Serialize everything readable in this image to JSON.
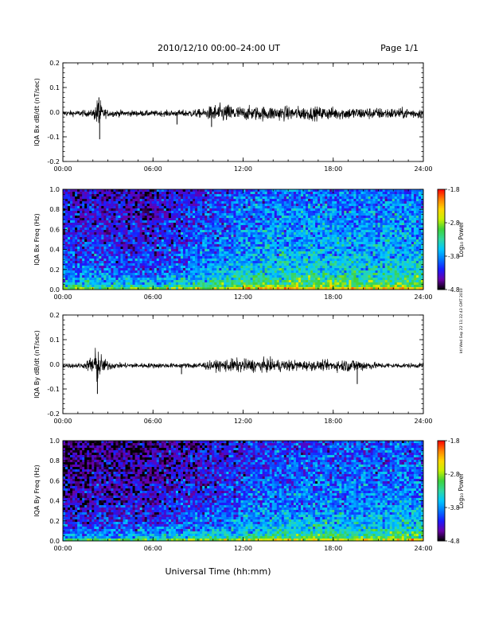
{
  "header": {
    "date_range": "2010/12/10  00:00–24:00 UT",
    "page": "Page 1/1"
  },
  "footer": {
    "xlabel": "Universal Time (hh:mm)"
  },
  "side_stamp": "ktl Wed Sep 22 11:32:43 GMT 2010",
  "colors": {
    "trace": "#000000",
    "spectrogram_scale": [
      "#000000",
      "#6a00a8",
      "#1a1aff",
      "#0078ff",
      "#00c8ff",
      "#30d8a0",
      "#3cd23c",
      "#c8f000",
      "#ffd700",
      "#ff8000",
      "#ff0000"
    ]
  },
  "chart_data": [
    {
      "type": "line",
      "title": "",
      "ylabel": "IQA Bx dB/dt (nT/sec)",
      "xlabel": "",
      "x_ticks": [
        "00:00",
        "06:00",
        "12:00",
        "18:00",
        "24:00"
      ],
      "y_ticks": [
        "0.2",
        "0.1",
        "0.0",
        "-0.1",
        "-0.2"
      ],
      "xlim": [
        0,
        24
      ],
      "ylim": [
        -0.2,
        0.2
      ],
      "units": "hours UT",
      "envelope": [
        {
          "x": 0,
          "amp": 0.012
        },
        {
          "x": 2.0,
          "amp": 0.015
        },
        {
          "x": 2.2,
          "amp": 0.045
        },
        {
          "x": 2.4,
          "amp": 0.085
        },
        {
          "x": 2.6,
          "amp": 0.03
        },
        {
          "x": 3.0,
          "amp": 0.015
        },
        {
          "x": 6.0,
          "amp": 0.012
        },
        {
          "x": 7.5,
          "amp": 0.014
        },
        {
          "x": 9.5,
          "amp": 0.02
        },
        {
          "x": 10.0,
          "amp": 0.04
        },
        {
          "x": 11.0,
          "amp": 0.04
        },
        {
          "x": 12.0,
          "amp": 0.03
        },
        {
          "x": 14.0,
          "amp": 0.032
        },
        {
          "x": 18.0,
          "amp": 0.028
        },
        {
          "x": 24.0,
          "amp": 0.022
        }
      ],
      "spikes": [
        {
          "x": 2.4,
          "y": 0.06
        },
        {
          "x": 2.45,
          "y": -0.11
        },
        {
          "x": 7.6,
          "y": -0.05
        },
        {
          "x": 9.9,
          "y": -0.06
        }
      ]
    },
    {
      "type": "heatmap",
      "title": "",
      "ylabel": "IQA Bx Freq (Hz)",
      "xlabel": "",
      "x_ticks": [
        "00:00",
        "06:00",
        "12:00",
        "18:00",
        "24:00"
      ],
      "y_ticks": [
        "1.0",
        "0.8",
        "0.6",
        "0.4",
        "0.2",
        "0.0"
      ],
      "xlim": [
        0,
        24
      ],
      "ylim": [
        0,
        1.0
      ],
      "colorbar": {
        "label": "Log₁₀ Power",
        "ticks": [
          "-1.8",
          "-2.8",
          "-3.8",
          "-4.8"
        ],
        "range": [
          -4.8,
          -1.8
        ]
      },
      "description_level": [
        {
          "x": 0,
          "level": 0.35
        },
        {
          "x": 6,
          "level": 0.3
        },
        {
          "x": 10,
          "level": 0.45
        },
        {
          "x": 14,
          "level": 0.55
        },
        {
          "x": 24,
          "level": 0.55
        }
      ]
    },
    {
      "type": "line",
      "title": "",
      "ylabel": "IQA By dB/dt (nT/sec)",
      "xlabel": "",
      "x_ticks": [
        "00:00",
        "06:00",
        "12:00",
        "18:00",
        "24:00"
      ],
      "y_ticks": [
        "0.2",
        "0.1",
        "0.0",
        "-0.1",
        "-0.2"
      ],
      "xlim": [
        0,
        24
      ],
      "ylim": [
        -0.2,
        0.2
      ],
      "units": "hours UT",
      "envelope": [
        {
          "x": 0,
          "amp": 0.01
        },
        {
          "x": 1.5,
          "amp": 0.012
        },
        {
          "x": 2.0,
          "amp": 0.06
        },
        {
          "x": 2.3,
          "amp": 0.085
        },
        {
          "x": 2.7,
          "amp": 0.03
        },
        {
          "x": 3.5,
          "amp": 0.012
        },
        {
          "x": 8.0,
          "amp": 0.01
        },
        {
          "x": 10.0,
          "amp": 0.02
        },
        {
          "x": 11.0,
          "amp": 0.03
        },
        {
          "x": 14.0,
          "amp": 0.028
        },
        {
          "x": 17.0,
          "amp": 0.02
        },
        {
          "x": 19.5,
          "amp": 0.03
        },
        {
          "x": 21.0,
          "amp": 0.012
        },
        {
          "x": 24.0,
          "amp": 0.01
        }
      ],
      "spikes": [
        {
          "x": 2.3,
          "y": -0.12
        },
        {
          "x": 7.9,
          "y": -0.04
        },
        {
          "x": 19.6,
          "y": -0.08
        }
      ]
    },
    {
      "type": "heatmap",
      "title": "",
      "ylabel": "IQA By Freq (Hz)",
      "xlabel": "",
      "x_ticks": [
        "00:00",
        "06:00",
        "12:00",
        "18:00",
        "24:00"
      ],
      "y_ticks": [
        "1.0",
        "0.8",
        "0.6",
        "0.4",
        "0.2",
        "0.0"
      ],
      "xlim": [
        0,
        24
      ],
      "ylim": [
        0,
        1.0
      ],
      "colorbar": {
        "label": "Log₁₀ Power",
        "ticks": [
          "-1.8",
          "-2.8",
          "-3.8",
          "-4.8"
        ],
        "range": [
          -4.8,
          -1.8
        ]
      },
      "description_level": [
        {
          "x": 0,
          "level": 0.22
        },
        {
          "x": 6,
          "level": 0.25
        },
        {
          "x": 10,
          "level": 0.35
        },
        {
          "x": 14,
          "level": 0.45
        },
        {
          "x": 24,
          "level": 0.5
        }
      ]
    }
  ]
}
